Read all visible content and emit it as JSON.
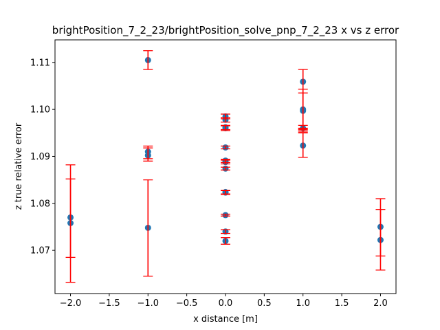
{
  "chart_data": {
    "type": "scatter",
    "title": "brightPosition_7_2_23/brightPosition_solve_pnp_7_2_23 x vs z error",
    "xlabel": "x distance [m]",
    "ylabel": "z true relative error",
    "xlim": [
      -2.2,
      2.2
    ],
    "ylim": [
      1.0608,
      1.1148
    ],
    "x_ticks": [
      -2.0,
      -1.5,
      -1.0,
      -0.5,
      0.0,
      0.5,
      1.0,
      1.5,
      2.0
    ],
    "x_tick_labels": [
      "−2.0",
      "−1.5",
      "−1.0",
      "−0.5",
      "0.0",
      "0.5",
      "1.0",
      "1.5",
      "2.0"
    ],
    "y_ticks": [
      1.07,
      1.08,
      1.09,
      1.1,
      1.11
    ],
    "y_tick_labels": [
      "1.07",
      "1.08",
      "1.09",
      "1.10",
      "1.11"
    ],
    "grid": false,
    "legend": "none",
    "marker_color": "#1f77b4",
    "errorbar_color": "#ff0000",
    "points": [
      {
        "x": -2,
        "y": 1.077,
        "err_low": 1.0632,
        "err_high": 1.0882
      },
      {
        "x": -2,
        "y": 1.0758,
        "err_low": 1.0685,
        "err_high": 1.0852
      },
      {
        "x": -1,
        "y": 1.1105,
        "err_low": 1.1085,
        "err_high": 1.1125
      },
      {
        "x": -1,
        "y": 1.091,
        "err_low": 1.0895,
        "err_high": 1.0922
      },
      {
        "x": -1,
        "y": 1.0902,
        "err_low": 1.089,
        "err_high": 1.0918
      },
      {
        "x": -1,
        "y": 1.0748,
        "err_low": 1.0645,
        "err_high": 1.085
      },
      {
        "x": 0,
        "y": 1.0985,
        "err_low": 1.098,
        "err_high": 1.099
      },
      {
        "x": 0,
        "y": 1.0978,
        "err_low": 1.0973,
        "err_high": 1.0983
      },
      {
        "x": 0,
        "y": 1.0962,
        "err_low": 1.0957,
        "err_high": 1.0966
      },
      {
        "x": 0,
        "y": 1.096,
        "err_low": 1.0955,
        "err_high": 1.0965
      },
      {
        "x": 0,
        "y": 1.0919,
        "err_low": 1.0916,
        "err_high": 1.0922
      },
      {
        "x": 0,
        "y": 1.0891,
        "err_low": 1.0887,
        "err_high": 1.0894
      },
      {
        "x": 0,
        "y": 1.0888,
        "err_low": 1.0884,
        "err_high": 1.0892
      },
      {
        "x": 0,
        "y": 1.0874,
        "err_low": 1.0871,
        "err_high": 1.0877
      },
      {
        "x": 0,
        "y": 1.0824,
        "err_low": 1.082,
        "err_high": 1.0828
      },
      {
        "x": 0,
        "y": 1.0823,
        "err_low": 1.0819,
        "err_high": 1.0827
      },
      {
        "x": 0,
        "y": 1.0775,
        "err_low": 1.0773,
        "err_high": 1.0777
      },
      {
        "x": 0,
        "y": 1.074,
        "err_low": 1.0736,
        "err_high": 1.0744
      },
      {
        "x": 0,
        "y": 1.072,
        "err_low": 1.0713,
        "err_high": 1.0727
      },
      {
        "x": 1,
        "y": 1.1059,
        "err_low": 1.0958,
        "err_high": 1.1085
      },
      {
        "x": 1,
        "y": 1.1,
        "err_low": 1.096,
        "err_high": 1.1043
      },
      {
        "x": 1,
        "y": 1.0997,
        "err_low": 1.0952,
        "err_high": 1.1035
      },
      {
        "x": 1,
        "y": 1.096,
        "err_low": 1.0956,
        "err_high": 1.0966
      },
      {
        "x": 1,
        "y": 1.0923,
        "err_low": 1.0898,
        "err_high": 1.095
      },
      {
        "x": 2,
        "y": 1.075,
        "err_low": 1.0688,
        "err_high": 1.081
      },
      {
        "x": 2,
        "y": 1.0722,
        "err_low": 1.0658,
        "err_high": 1.0787
      }
    ]
  }
}
